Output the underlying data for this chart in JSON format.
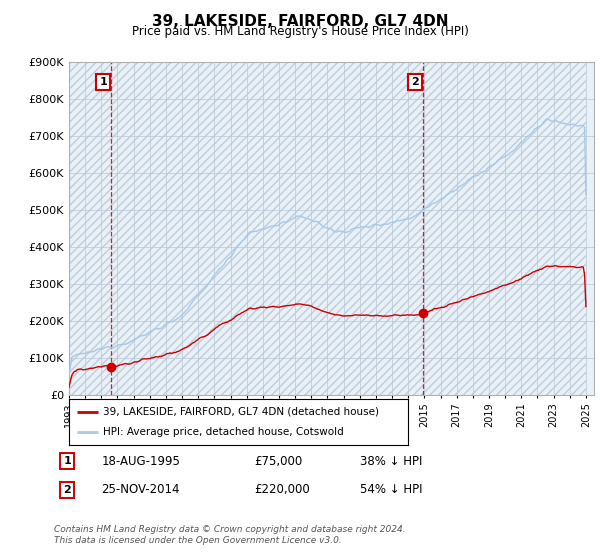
{
  "title": "39, LAKESIDE, FAIRFORD, GL7 4DN",
  "subtitle": "Price paid vs. HM Land Registry's House Price Index (HPI)",
  "ylim": [
    0,
    900000
  ],
  "yticks": [
    0,
    100000,
    200000,
    300000,
    400000,
    500000,
    600000,
    700000,
    800000,
    900000
  ],
  "hpi_color": "#a8c8e8",
  "hpi_fill_color": "#ddeeff",
  "price_color": "#cc0000",
  "vline_color": "#cc0000",
  "annotation_box_color": "#cc0000",
  "sale1_date_num": 1995.63,
  "sale1_price": 75000,
  "sale2_date_num": 2014.9,
  "sale2_price": 220000,
  "legend_label1": "39, LAKESIDE, FAIRFORD, GL7 4DN (detached house)",
  "legend_label2": "HPI: Average price, detached house, Cotswold",
  "footnote": "Contains HM Land Registry data © Crown copyright and database right 2024.\nThis data is licensed under the Open Government Licence v3.0.",
  "hatch_color": "#c8c8c8",
  "grid_color": "#c8d8e8"
}
